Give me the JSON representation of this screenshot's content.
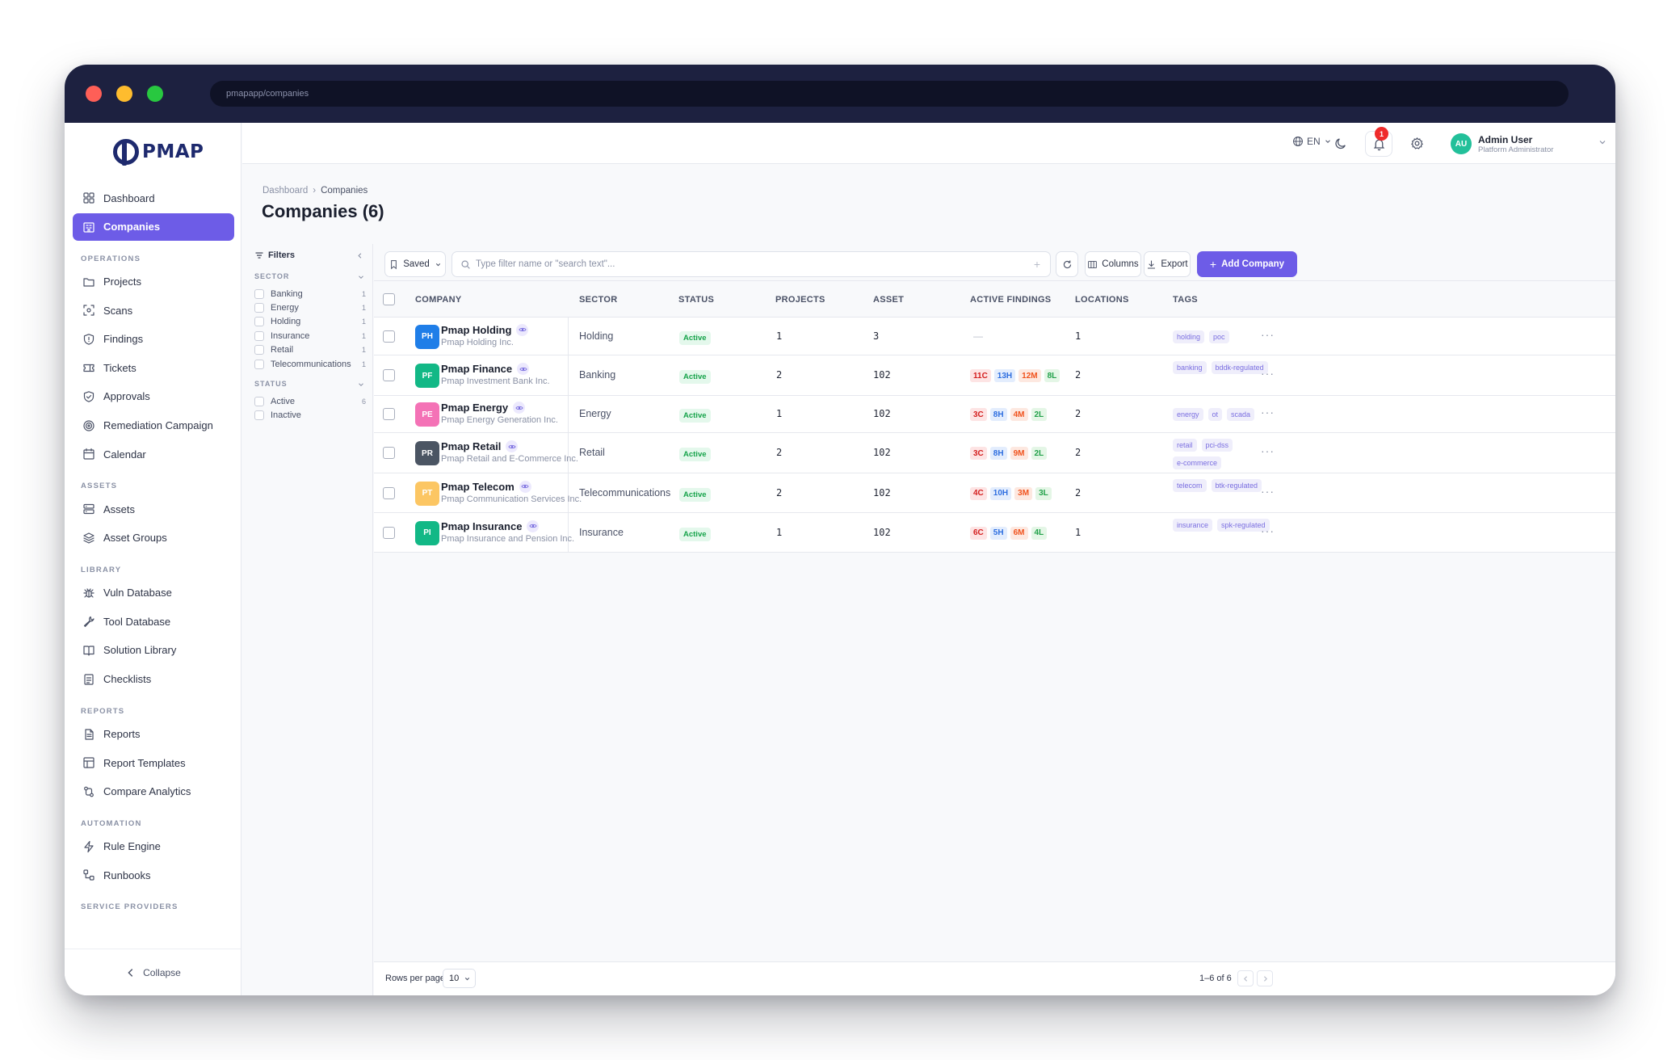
{
  "browser": {
    "url": "pmapapp/companies"
  },
  "brand": {
    "name": "PMAP"
  },
  "sidebar": {
    "items": [
      {
        "label": "Dashboard",
        "icon": "grid-icon",
        "active": false
      },
      {
        "label": "Companies",
        "icon": "building-icon",
        "active": true
      }
    ],
    "sections": [
      {
        "title": "OPERATIONS",
        "items": [
          {
            "label": "Projects",
            "icon": "folder-icon"
          },
          {
            "label": "Scans",
            "icon": "scan-icon"
          },
          {
            "label": "Findings",
            "icon": "shield-alert-icon"
          },
          {
            "label": "Tickets",
            "icon": "ticket-icon"
          },
          {
            "label": "Approvals",
            "icon": "shield-check-icon"
          },
          {
            "label": "Remediation Campaign",
            "icon": "target-icon"
          },
          {
            "label": "Calendar",
            "icon": "calendar-icon"
          }
        ]
      },
      {
        "title": "ASSETS",
        "items": [
          {
            "label": "Assets",
            "icon": "server-icon"
          },
          {
            "label": "Asset Groups",
            "icon": "layers-icon"
          }
        ]
      },
      {
        "title": "LIBRARY",
        "items": [
          {
            "label": "Vuln Database",
            "icon": "bug-icon"
          },
          {
            "label": "Tool Database",
            "icon": "wrench-icon"
          },
          {
            "label": "Solution Library",
            "icon": "book-icon"
          },
          {
            "label": "Checklists",
            "icon": "checklist-icon"
          }
        ]
      },
      {
        "title": "REPORTS",
        "items": [
          {
            "label": "Reports",
            "icon": "file-icon"
          },
          {
            "label": "Report Templates",
            "icon": "template-icon"
          },
          {
            "label": "Compare Analytics",
            "icon": "compare-icon"
          }
        ]
      },
      {
        "title": "AUTOMATION",
        "items": [
          {
            "label": "Rule Engine",
            "icon": "zap-icon"
          },
          {
            "label": "Runbooks",
            "icon": "workflow-icon"
          }
        ]
      },
      {
        "title": "SERVICE PROVIDERS",
        "items": []
      }
    ],
    "collapse_label": "Collapse"
  },
  "topbar": {
    "language": "EN",
    "notifications_count": "1",
    "user": {
      "initials": "AU",
      "name": "Admin User",
      "role": "Platform Administrator"
    }
  },
  "breadcrumb": {
    "parent": "Dashboard",
    "current": "Companies"
  },
  "page": {
    "title": "Companies (6)"
  },
  "filters": {
    "title": "Filters",
    "sector": {
      "title": "SECTOR",
      "options": [
        {
          "label": "Banking",
          "count": "1"
        },
        {
          "label": "Energy",
          "count": "1"
        },
        {
          "label": "Holding",
          "count": "1"
        },
        {
          "label": "Insurance",
          "count": "1"
        },
        {
          "label": "Retail",
          "count": "1"
        },
        {
          "label": "Telecommunications",
          "count": "1"
        }
      ]
    },
    "status": {
      "title": "STATUS",
      "options": [
        {
          "label": "Active",
          "count": "6"
        },
        {
          "label": "Inactive",
          "count": ""
        }
      ]
    }
  },
  "toolbar": {
    "saved_label": "Saved",
    "search_placeholder": "Type filter name or \"search text\"...",
    "columns_label": "Columns",
    "export_label": "Export",
    "add_label": "Add Company"
  },
  "table": {
    "columns": [
      "COMPANY",
      "SECTOR",
      "STATUS",
      "PROJECTS",
      "ASSET",
      "ACTIVE FINDINGS",
      "LOCATIONS",
      "TAGS"
    ],
    "rows": [
      {
        "initials": "PH",
        "color": "#1f7ee8",
        "name": "Pmap Holding",
        "legal": "Pmap Holding Inc.",
        "sector": "Holding",
        "status": "Active",
        "projects": "1",
        "asset": "3",
        "findings": null,
        "findings_empty": "—",
        "locations": "1",
        "tags": [
          "holding",
          "poc"
        ]
      },
      {
        "initials": "PF",
        "color": "#12b886",
        "name": "Pmap Finance",
        "legal": "Pmap Investment Bank Inc.",
        "sector": "Banking",
        "status": "Active",
        "projects": "2",
        "asset": "102",
        "findings": {
          "c": "11C",
          "h": "13H",
          "m": "12M",
          "l": "8L"
        },
        "locations": "2",
        "tags": [
          "banking",
          "bddk-regulated"
        ]
      },
      {
        "initials": "PE",
        "color": "#f472b6",
        "name": "Pmap Energy",
        "legal": "Pmap Energy Generation Inc.",
        "sector": "Energy",
        "status": "Active",
        "projects": "1",
        "asset": "102",
        "findings": {
          "c": "3C",
          "h": "8H",
          "m": "4M",
          "l": "2L"
        },
        "locations": "2",
        "tags": [
          "energy",
          "ot",
          "scada"
        ]
      },
      {
        "initials": "PR",
        "color": "#4b5563",
        "name": "Pmap Retail",
        "legal": "Pmap Retail and E-Commerce Inc.",
        "sector": "Retail",
        "status": "Active",
        "projects": "2",
        "asset": "102",
        "findings": {
          "c": "3C",
          "h": "8H",
          "m": "9M",
          "l": "2L"
        },
        "locations": "2",
        "tags": [
          "retail",
          "pci-dss",
          "e-commerce"
        ]
      },
      {
        "initials": "PT",
        "color": "#fcc663",
        "name": "Pmap Telecom",
        "legal": "Pmap Communication Services Inc.",
        "sector": "Telecommunications",
        "status": "Active",
        "projects": "2",
        "asset": "102",
        "findings": {
          "c": "4C",
          "h": "10H",
          "m": "3M",
          "l": "3L"
        },
        "locations": "2",
        "tags": [
          "telecom",
          "btk-regulated"
        ]
      },
      {
        "initials": "PI",
        "color": "#12b886",
        "name": "Pmap Insurance",
        "legal": "Pmap Insurance and Pension Inc.",
        "sector": "Insurance",
        "status": "Active",
        "projects": "1",
        "asset": "102",
        "findings": {
          "c": "6C",
          "h": "5H",
          "m": "6M",
          "l": "4L"
        },
        "locations": "1",
        "tags": [
          "insurance",
          "spk-regulated"
        ]
      }
    ]
  },
  "pagination": {
    "rows_label": "Rows per page:",
    "rows_value": "10",
    "range": "1–6 of 6"
  }
}
